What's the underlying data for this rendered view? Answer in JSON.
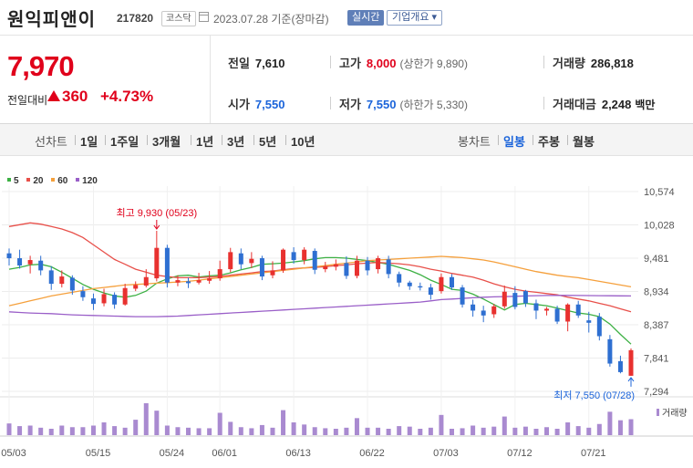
{
  "header": {
    "stock_name": "원익피앤이",
    "stock_code": "217820",
    "market_badge": "코스닥",
    "date_text": "2023.07.28  기준(장마감)",
    "live_button": "실시간",
    "company_button": "기업개요 ▾"
  },
  "summary": {
    "price": "7,970",
    "change_label": "전일대비",
    "change_amount": "360",
    "change_percent": "+4.73%",
    "prev_close_label": "전일",
    "prev_close": "7,610",
    "high_label": "고가",
    "high": "8,000",
    "upper_limit": "(상한가 9,890)",
    "volume_label": "거래량",
    "volume": "286,818",
    "open_label": "시가",
    "open": "7,550",
    "low_label": "저가",
    "low": "7,550",
    "lower_limit": "(하한가 5,330)",
    "value_label": "거래대금",
    "value": "2,248",
    "value_unit": "백만"
  },
  "periods": {
    "line_label": "선차트",
    "line_items": [
      "1일",
      "1주일",
      "3개월",
      "1년",
      "3년",
      "5년",
      "10년"
    ],
    "candle_label": "봉차트",
    "candle_items": [
      "일봉",
      "주봉",
      "월봉"
    ],
    "candle_active": "일봉"
  },
  "legend": [
    {
      "label": "5",
      "color": "#3cb043"
    },
    {
      "label": "20",
      "color": "#e8504a"
    },
    {
      "label": "60",
      "color": "#f5a03c"
    },
    {
      "label": "120",
      "color": "#9a5fc8"
    }
  ],
  "chart_data": {
    "type": "candlestick",
    "y_ticks": [
      "10,574",
      "10,028",
      "9,481",
      "8,934",
      "8,387",
      "7,841",
      "7,294"
    ],
    "ylim": [
      7294,
      10574
    ],
    "x_ticks": [
      {
        "label": "05/03",
        "index": 0
      },
      {
        "label": "05/15",
        "index": 8
      },
      {
        "label": "05/24",
        "index": 15
      },
      {
        "label": "06/01",
        "index": 20
      },
      {
        "label": "06/13",
        "index": 27
      },
      {
        "label": "06/22",
        "index": 34
      },
      {
        "label": "07/03",
        "index": 41
      },
      {
        "label": "07/12",
        "index": 48
      },
      {
        "label": "07/21",
        "index": 55
      }
    ],
    "high_annotation": {
      "text": "최고 9,930 (05/23)",
      "index": 14,
      "value": 9930
    },
    "low_annotation": {
      "text": "최저 7,550 (07/28)",
      "index": 59,
      "value": 7550
    },
    "volume_label": "거래량",
    "candles": [
      [
        9560,
        9480,
        9640,
        9360
      ],
      [
        9480,
        9360,
        9620,
        9310
      ],
      [
        9380,
        9450,
        9520,
        9230
      ],
      [
        9440,
        9280,
        9520,
        9200
      ],
      [
        9280,
        9060,
        9350,
        8960
      ],
      [
        9060,
        9180,
        9280,
        9000
      ],
      [
        9160,
        8950,
        9200,
        8880
      ],
      [
        8940,
        8840,
        9020,
        8780
      ],
      [
        8820,
        8730,
        8900,
        8630
      ],
      [
        8740,
        8890,
        8980,
        8690
      ],
      [
        8880,
        8720,
        8920,
        8650
      ],
      [
        8720,
        8990,
        9060,
        8700
      ],
      [
        8980,
        9040,
        9100,
        8940
      ],
      [
        9030,
        9170,
        9300,
        9000
      ],
      [
        9150,
        9650,
        9930,
        9100
      ],
      [
        9650,
        9080,
        9700,
        9000
      ],
      [
        9080,
        9120,
        9200,
        9020
      ],
      [
        9100,
        9070,
        9160,
        8990
      ],
      [
        9080,
        9120,
        9240,
        9050
      ],
      [
        9110,
        9150,
        9270,
        9060
      ],
      [
        9150,
        9300,
        9440,
        9110
      ],
      [
        9300,
        9580,
        9650,
        9250
      ],
      [
        9560,
        9380,
        9640,
        9300
      ],
      [
        9400,
        9470,
        9580,
        9320
      ],
      [
        9480,
        9180,
        9520,
        9120
      ],
      [
        9200,
        9280,
        9430,
        9150
      ],
      [
        9280,
        9620,
        9640,
        9240
      ],
      [
        9580,
        9450,
        9660,
        9390
      ],
      [
        9450,
        9620,
        9660,
        9380
      ],
      [
        9600,
        9290,
        9640,
        9220
      ],
      [
        9300,
        9350,
        9420,
        9250
      ],
      [
        9340,
        9380,
        9460,
        9280
      ],
      [
        9400,
        9190,
        9510,
        9140
      ],
      [
        9190,
        9440,
        9520,
        9150
      ],
      [
        9440,
        9280,
        9500,
        9200
      ],
      [
        9300,
        9480,
        9520,
        9230
      ],
      [
        9460,
        9220,
        9520,
        9150
      ],
      [
        9220,
        9080,
        9260,
        9010
      ],
      [
        9080,
        9020,
        9110,
        8960
      ],
      [
        9020,
        9000,
        9080,
        8950
      ],
      [
        9000,
        8880,
        9060,
        8800
      ],
      [
        8940,
        9170,
        9230,
        8900
      ],
      [
        9170,
        9000,
        9220,
        8960
      ],
      [
        9000,
        8720,
        9040,
        8670
      ],
      [
        8720,
        8620,
        8800,
        8520
      ],
      [
        8620,
        8540,
        8700,
        8430
      ],
      [
        8560,
        8690,
        8730,
        8500
      ],
      [
        8690,
        8930,
        9030,
        8650
      ],
      [
        8910,
        8680,
        9020,
        8640
      ],
      [
        8940,
        8740,
        8960,
        8680
      ],
      [
        8740,
        8620,
        8800,
        8480
      ],
      [
        8620,
        8650,
        8680,
        8540
      ],
      [
        8650,
        8440,
        8700,
        8400
      ],
      [
        8440,
        8720,
        8740,
        8280
      ],
      [
        8720,
        8540,
        8780,
        8500
      ],
      [
        8460,
        8420,
        8600,
        8260
      ],
      [
        8520,
        8200,
        8580,
        8130
      ],
      [
        8150,
        7750,
        8220,
        7700
      ],
      [
        7790,
        7610,
        7880,
        7590
      ],
      [
        7550,
        7970,
        8000,
        7550
      ]
    ],
    "volumes": [
      22,
      17,
      18,
      14,
      12,
      18,
      15,
      15,
      18,
      24,
      17,
      14,
      29,
      60,
      46,
      18,
      15,
      14,
      13,
      13,
      42,
      25,
      15,
      13,
      19,
      14,
      47,
      24,
      20,
      15,
      13,
      12,
      14,
      32,
      14,
      14,
      12,
      17,
      16,
      12,
      14,
      38,
      12,
      13,
      18,
      14,
      16,
      35,
      14,
      16,
      12,
      15,
      12,
      24,
      17,
      14,
      21,
      44,
      28,
      30
    ],
    "series": [
      {
        "name": "5",
        "values": [
          9300,
          9330,
          9370,
          9380,
          9340,
          9250,
          9150,
          9050,
          8970,
          8910,
          8860,
          8840,
          8870,
          8940,
          9070,
          9140,
          9190,
          9200,
          9170,
          9190,
          9200,
          9240,
          9290,
          9330,
          9380,
          9390,
          9400,
          9420,
          9440,
          9470,
          9490,
          9490,
          9480,
          9460,
          9440,
          9410,
          9380,
          9330,
          9280,
          9210,
          9120,
          9050,
          8970,
          8950,
          8890,
          8810,
          8720,
          8630,
          8720,
          8740,
          8720,
          8700,
          8660,
          8620,
          8580,
          8560,
          8520,
          8400,
          8230,
          8070
        ]
      },
      {
        "name": "20",
        "values": [
          10000,
          10030,
          10060,
          10040,
          10000,
          9960,
          9900,
          9820,
          9700,
          9580,
          9460,
          9380,
          9300,
          9250,
          9200,
          9180,
          9160,
          9160,
          9160,
          9170,
          9180,
          9200,
          9220,
          9240,
          9260,
          9270,
          9290,
          9310,
          9320,
          9330,
          9340,
          9360,
          9370,
          9390,
          9400,
          9410,
          9400,
          9390,
          9370,
          9340,
          9300,
          9270,
          9230,
          9200,
          9170,
          9120,
          9060,
          9010,
          8970,
          8940,
          8920,
          8900,
          8880,
          8840,
          8810,
          8780,
          8740,
          8700,
          8650,
          8600
        ]
      },
      {
        "name": "60",
        "values": [
          8700,
          8740,
          8780,
          8820,
          8860,
          8890,
          8920,
          8950,
          8980,
          9000,
          9020,
          9040,
          9050,
          9060,
          9070,
          9080,
          9090,
          9100,
          9120,
          9140,
          9160,
          9180,
          9200,
          9220,
          9240,
          9260,
          9280,
          9300,
          9320,
          9340,
          9360,
          9380,
          9400,
          9420,
          9440,
          9450,
          9460,
          9470,
          9480,
          9490,
          9500,
          9510,
          9500,
          9490,
          9470,
          9450,
          9420,
          9380,
          9340,
          9300,
          9260,
          9230,
          9200,
          9180,
          9160,
          9130,
          9100,
          9070,
          9040,
          9010
        ]
      },
      {
        "name": "120",
        "values": [
          8600,
          8590,
          8580,
          8575,
          8570,
          8560,
          8550,
          8545,
          8540,
          8535,
          8530,
          8525,
          8520,
          8520,
          8520,
          8525,
          8530,
          8540,
          8550,
          8560,
          8570,
          8580,
          8590,
          8600,
          8610,
          8620,
          8630,
          8640,
          8650,
          8660,
          8670,
          8680,
          8690,
          8700,
          8710,
          8720,
          8730,
          8740,
          8750,
          8760,
          8780,
          8800,
          8810,
          8820,
          8830,
          8840,
          8845,
          8850,
          8855,
          8860,
          8865,
          8868,
          8870,
          8870,
          8868,
          8866,
          8865,
          8864,
          8862,
          8860
        ]
      }
    ]
  }
}
